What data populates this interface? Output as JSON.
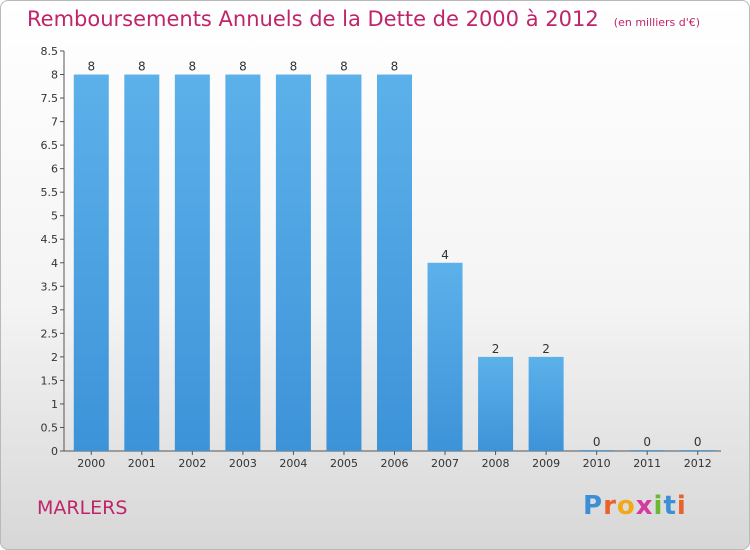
{
  "title": "Remboursements Annuels de la Dette de 2000 à 2012",
  "unit_note": "(en milliers d'€)",
  "city": "MARLERS",
  "logo": {
    "letters": [
      "P",
      "r",
      "o",
      "x",
      "i",
      "t",
      "i"
    ],
    "colors": [
      "#3b8fd6",
      "#e8622b",
      "#f2a81b",
      "#d63aa0",
      "#6ab82f",
      "#3b8fd6",
      "#e8622b"
    ]
  },
  "colors": {
    "bar": "#3d93d8",
    "bar_light": "#5cb1ea",
    "title": "#c0246a",
    "text": "#333333"
  },
  "chart_data": {
    "type": "bar",
    "categories": [
      "2000",
      "2001",
      "2002",
      "2003",
      "2004",
      "2005",
      "2006",
      "2007",
      "2008",
      "2009",
      "2010",
      "2011",
      "2012"
    ],
    "values": [
      8,
      8,
      8,
      8,
      8,
      8,
      8,
      4,
      2,
      2,
      0,
      0,
      0
    ],
    "data_labels": [
      "8",
      "8",
      "8",
      "8",
      "8",
      "8",
      "8",
      "4",
      "2",
      "2",
      "0",
      "0",
      "0"
    ],
    "ylim": [
      0,
      8.5
    ],
    "yticks": [
      0,
      0.5,
      1,
      1.5,
      2,
      2.5,
      3,
      3.5,
      4,
      4.5,
      5,
      5.5,
      6,
      6.5,
      7,
      7.5,
      8,
      8.5
    ],
    "ytick_labels": [
      "0",
      "0.5",
      "1",
      "1.5",
      "2",
      "2.5",
      "3",
      "3.5",
      "4",
      "4.5",
      "5",
      "5.5",
      "6",
      "6.5",
      "7",
      "7.5",
      "8",
      "8.5"
    ],
    "grid": false,
    "xlabel": "",
    "ylabel": ""
  }
}
